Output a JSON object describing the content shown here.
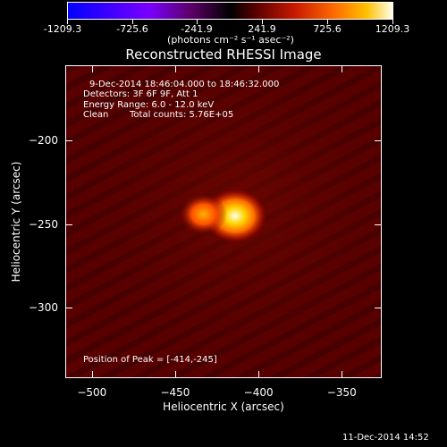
{
  "colorbar": {
    "ticks": [
      "-1209.3",
      "-725.6",
      "-241.9",
      "241.9",
      "725.6",
      "1209.3"
    ],
    "units": "(photons cm⁻² s⁻¹ asec⁻²)"
  },
  "chart_data": {
    "type": "heatmap",
    "title": "Reconstructed RHESSI Image",
    "xlabel": "Heliocentric X (arcsec)",
    "ylabel": "Heliocentric Y (arcsec)",
    "xlim": [
      -516,
      -326
    ],
    "ylim": [
      -342,
      -155
    ],
    "x_ticks": [
      -500,
      -450,
      -400,
      -350
    ],
    "y_ticks": [
      -200,
      -250,
      -300
    ],
    "x_tick_labels": [
      "−500",
      "−450",
      "−400",
      "−350"
    ],
    "y_tick_labels": [
      "−200",
      "−250",
      "−300"
    ],
    "color_range": [
      -1209.3,
      1209.3
    ],
    "peak_position": [
      -414,
      -245
    ],
    "sources": [
      {
        "x": -414,
        "y": -245,
        "intensity": 1209.3
      },
      {
        "x": -433,
        "y": -244,
        "intensity": 700
      }
    ],
    "annotations": [
      "9-Dec-2014 18:46:04.000 to 18:46:32.000",
      "Detectors: 3F 6F 9F, Att 1",
      "Energy Range: 6.0 - 12.0 keV",
      "Clean",
      "Total counts: 5.76E+05",
      "Position of Peak = [-414,-245]"
    ]
  },
  "footer": {
    "timestamp": "11-Dec-2014 14:52"
  }
}
